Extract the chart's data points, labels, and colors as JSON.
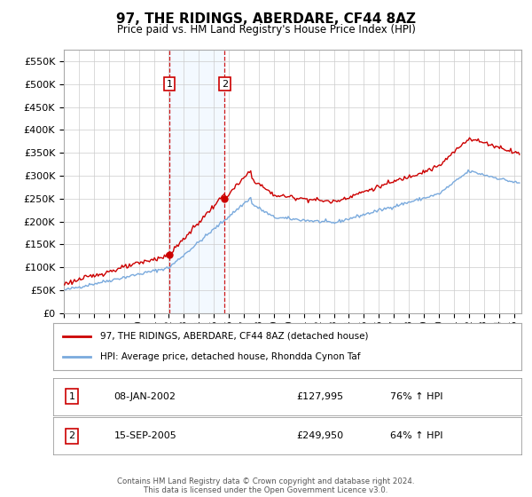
{
  "title": "97, THE RIDINGS, ABERDARE, CF44 8AZ",
  "subtitle": "Price paid vs. HM Land Registry's House Price Index (HPI)",
  "ylim": [
    0,
    575000
  ],
  "yticks": [
    0,
    50000,
    100000,
    150000,
    200000,
    250000,
    300000,
    350000,
    400000,
    450000,
    500000,
    550000
  ],
  "ytick_labels": [
    "£0",
    "£50K",
    "£100K",
    "£150K",
    "£200K",
    "£250K",
    "£300K",
    "£350K",
    "£400K",
    "£450K",
    "£500K",
    "£550K"
  ],
  "hpi_color": "#7aaadd",
  "price_color": "#cc0000",
  "shade_color": "#ddeeff",
  "t1": 2002.04,
  "t2": 2005.71,
  "p1": 127995,
  "p2": 249950,
  "legend_label1": "97, THE RIDINGS, ABERDARE, CF44 8AZ (detached house)",
  "legend_label2": "HPI: Average price, detached house, Rhondda Cynon Taf",
  "row1": [
    "1",
    "08-JAN-2002",
    "£127,995",
    "76% ↑ HPI"
  ],
  "row2": [
    "2",
    "15-SEP-2005",
    "£249,950",
    "64% ↑ HPI"
  ],
  "footer": "Contains HM Land Registry data © Crown copyright and database right 2024.\nThis data is licensed under the Open Government Licence v3.0.",
  "background_color": "#ffffff",
  "grid_color": "#cccccc"
}
